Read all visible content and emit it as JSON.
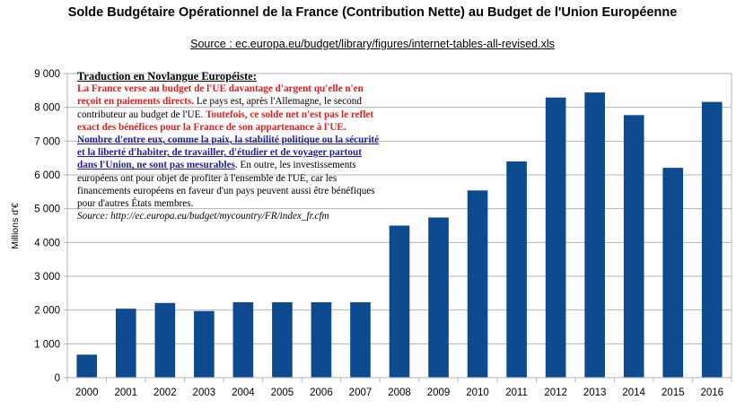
{
  "chart_data": {
    "type": "bar",
    "title": "Solde Budgétaire Opérationnel de la France (Contribution Nette) au Budget de l'Union Européenne",
    "source": "Source : ec.europa.eu/budget/library/figures/internet-tables-all-revised.xls",
    "xlabel": "",
    "ylabel": "Millions d'€",
    "ylim": [
      0,
      9000
    ],
    "yticks": [
      0,
      1000,
      2000,
      3000,
      4000,
      5000,
      6000,
      7000,
      8000,
      9000
    ],
    "ytick_labels": [
      "0",
      "1 000",
      "2 000",
      "3 000",
      "4 000",
      "5 000",
      "6 000",
      "7 000",
      "8 000",
      "9 000"
    ],
    "grid": true,
    "categories": [
      "2000",
      "2001",
      "2002",
      "2003",
      "2004",
      "2005",
      "2006",
      "2007",
      "2008",
      "2009",
      "2010",
      "2011",
      "2012",
      "2013",
      "2014",
      "2015",
      "2016"
    ],
    "series": [
      {
        "name": "Solde budgétaire opérationnel",
        "color": "#0d4a8f",
        "values": [
          680,
          2040,
          2210,
          1970,
          2230,
          2230,
          2230,
          2230,
          4500,
          4740,
          5540,
          6400,
          8290,
          8440,
          7770,
          6210,
          8160
        ]
      }
    ],
    "annotation": {
      "heading": "Traduction en Novlangue Européiste:",
      "red_1": "La France verse au budget de l'UE davantage d'argent qu'elle n'en reçoit en paiements directs.",
      "text_1": " Le pays est, après l'Allemagne, le second contributeur au budget de l'UE. ",
      "red_2": "Toutefois, ce solde net n'est pas le reflet exact des bénéfices pour la France de son appartenance à l'UE.",
      "blue_1": "Nombre d'entre eux, comme la paix, la stabilité politique ou la sécurité et la liberté d'habiter, de travailler, d'étudier et de voyager partout dans l'Union, ne sont pas mesurables",
      "text_2": ". En outre, les investissements européens ont pour objet de profiter à l'ensemble de l'UE, car les financements européens en faveur d'un pays peuvent aussi être bénéfiques pour d'autres États membres.",
      "source_line": "Source: http://ec.europa.eu/budget/mycountry/FR/index_fr.cfm"
    }
  }
}
